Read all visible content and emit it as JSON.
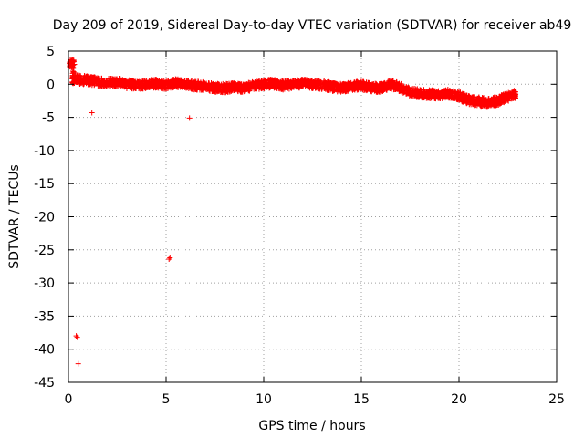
{
  "chart_data": {
    "type": "scatter",
    "title": "Day 209 of 2019, Sidereal Day-to-day VTEC variation (SDTVAR) for receiver ab49",
    "xlabel": "GPS time / hours",
    "ylabel": "SDTVAR / TECUs",
    "xlim": [
      0,
      25
    ],
    "ylim": [
      -45,
      5
    ],
    "x_ticks": [
      0,
      5,
      10,
      15,
      20,
      25
    ],
    "y_ticks": [
      5,
      0,
      -5,
      -10,
      -15,
      -20,
      -25,
      -30,
      -35,
      -40,
      -45
    ],
    "grid": true,
    "marker": "+",
    "series": [
      {
        "name": "SDTVAR",
        "color": "#ff0000",
        "trend": [
          [
            0.05,
            3.1
          ],
          [
            0.3,
            3.0
          ],
          [
            0.2,
            0.8
          ],
          [
            0.9,
            0.6
          ],
          [
            1.5,
            0.4
          ],
          [
            2.0,
            0.2
          ],
          [
            2.5,
            0.3
          ],
          [
            3.0,
            0.0
          ],
          [
            3.5,
            -0.1
          ],
          [
            4.0,
            0.0
          ],
          [
            4.5,
            0.1
          ],
          [
            5.0,
            -0.1
          ],
          [
            5.5,
            0.2
          ],
          [
            6.0,
            0.0
          ],
          [
            6.5,
            -0.2
          ],
          [
            7.0,
            -0.3
          ],
          [
            7.5,
            -0.5
          ],
          [
            8.0,
            -0.6
          ],
          [
            8.5,
            -0.4
          ],
          [
            9.0,
            -0.6
          ],
          [
            9.5,
            -0.2
          ],
          [
            10.0,
            0.0
          ],
          [
            10.5,
            0.1
          ],
          [
            11.0,
            -0.2
          ],
          [
            11.5,
            0.0
          ],
          [
            12.0,
            0.1
          ],
          [
            12.5,
            0.0
          ],
          [
            13.0,
            -0.1
          ],
          [
            13.5,
            -0.4
          ],
          [
            14.0,
            -0.6
          ],
          [
            14.5,
            -0.3
          ],
          [
            15.0,
            -0.2
          ],
          [
            15.5,
            -0.5
          ],
          [
            16.0,
            -0.6
          ],
          [
            16.5,
            0.0
          ],
          [
            17.0,
            -0.5
          ],
          [
            17.5,
            -1.2
          ],
          [
            18.0,
            -1.4
          ],
          [
            18.5,
            -1.5
          ],
          [
            19.0,
            -1.6
          ],
          [
            19.5,
            -1.4
          ],
          [
            20.0,
            -1.8
          ],
          [
            20.5,
            -2.4
          ],
          [
            21.0,
            -2.6
          ],
          [
            21.5,
            -2.8
          ],
          [
            22.0,
            -2.5
          ],
          [
            22.5,
            -1.9
          ],
          [
            22.9,
            -1.5
          ]
        ],
        "outliers": [
          [
            1.2,
            -4.3
          ],
          [
            6.2,
            -5.1
          ],
          [
            5.2,
            -26.2
          ],
          [
            5.15,
            -26.4
          ],
          [
            0.4,
            -38.0
          ],
          [
            0.45,
            -38.2
          ],
          [
            0.5,
            -42.2
          ]
        ]
      }
    ]
  }
}
